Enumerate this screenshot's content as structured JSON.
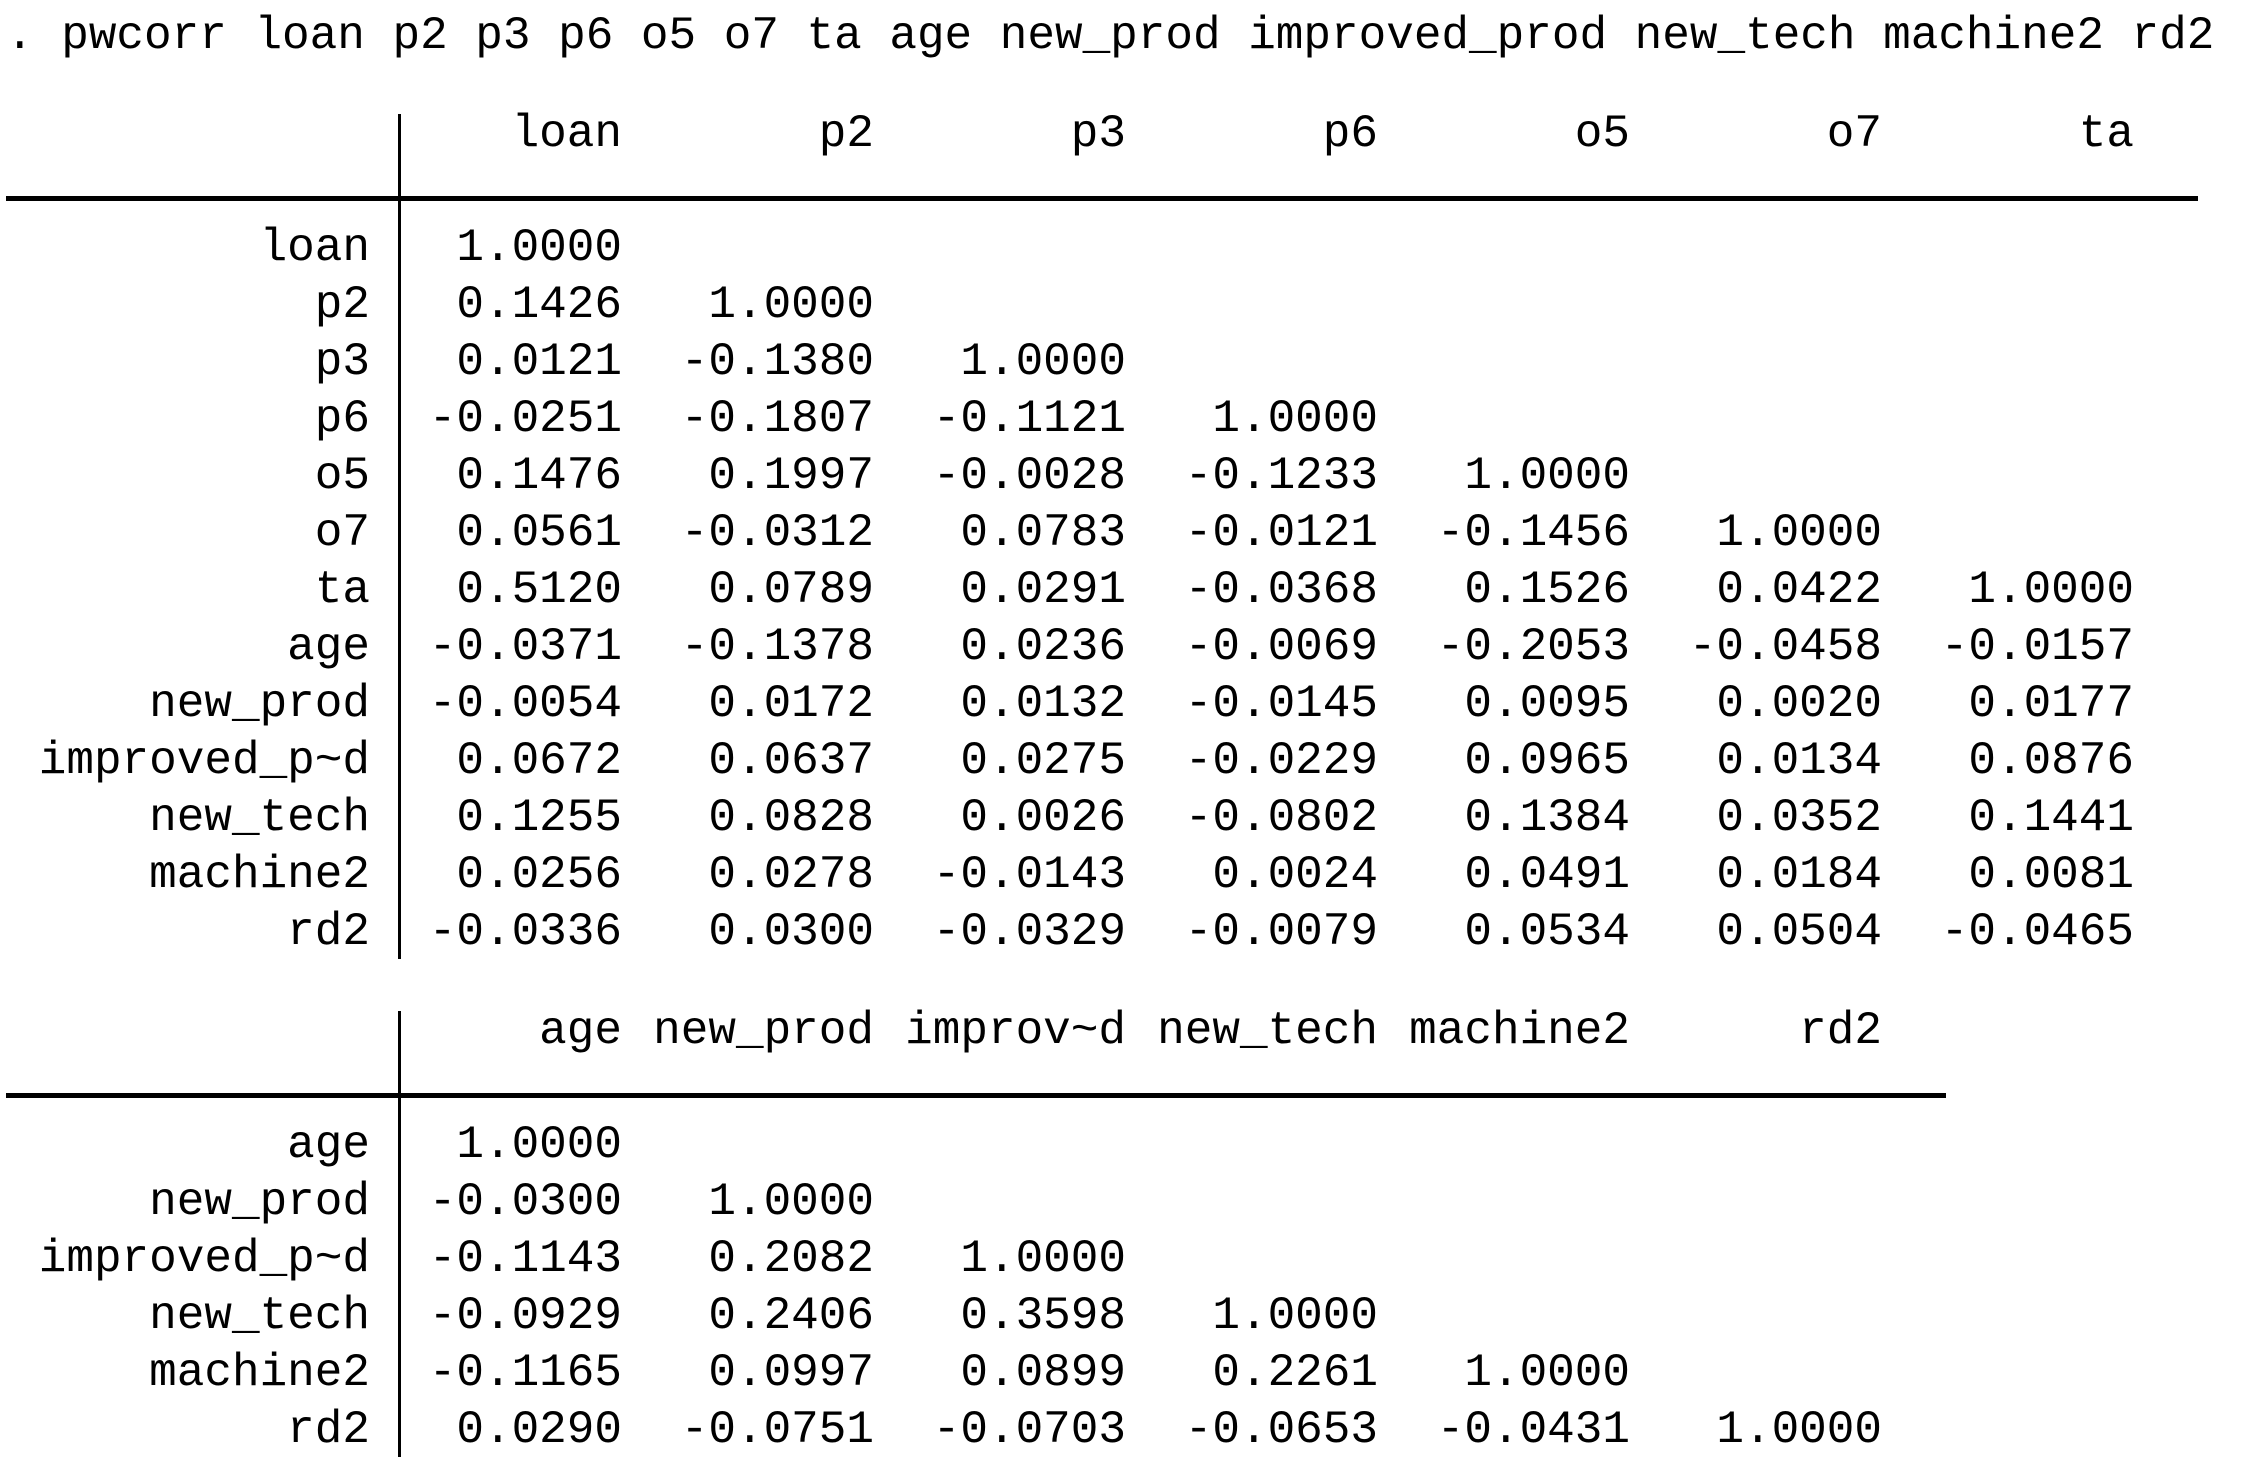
{
  "command_line": ". pwcorr loan p2 p3 p6 o5 o7 ta age new_prod improved_prod new_tech machine2 rd2",
  "colors": {
    "background": "#ffffff",
    "text": "#000000",
    "rule": "#000000"
  },
  "table1": {
    "headers": [
      "loan",
      "p2",
      "p3",
      "p6",
      "o5",
      "o7",
      "ta"
    ],
    "rows": [
      {
        "label": "loan",
        "values": [
          "1.0000"
        ]
      },
      {
        "label": "p2",
        "values": [
          "0.1426",
          "1.0000"
        ]
      },
      {
        "label": "p3",
        "values": [
          "0.0121",
          "-0.1380",
          "1.0000"
        ]
      },
      {
        "label": "p6",
        "values": [
          "-0.0251",
          "-0.1807",
          "-0.1121",
          "1.0000"
        ]
      },
      {
        "label": "o5",
        "values": [
          "0.1476",
          "0.1997",
          "-0.0028",
          "-0.1233",
          "1.0000"
        ]
      },
      {
        "label": "o7",
        "values": [
          "0.0561",
          "-0.0312",
          "0.0783",
          "-0.0121",
          "-0.1456",
          "1.0000"
        ]
      },
      {
        "label": "ta",
        "values": [
          "0.5120",
          "0.0789",
          "0.0291",
          "-0.0368",
          "0.1526",
          "0.0422",
          "1.0000"
        ]
      },
      {
        "label": "age",
        "values": [
          "-0.0371",
          "-0.1378",
          "0.0236",
          "-0.0069",
          "-0.2053",
          "-0.0458",
          "-0.0157"
        ]
      },
      {
        "label": "new_prod",
        "values": [
          "-0.0054",
          "0.0172",
          "0.0132",
          "-0.0145",
          "0.0095",
          "0.0020",
          "0.0177"
        ]
      },
      {
        "label": "improved_p~d",
        "values": [
          "0.0672",
          "0.0637",
          "0.0275",
          "-0.0229",
          "0.0965",
          "0.0134",
          "0.0876"
        ]
      },
      {
        "label": "new_tech",
        "values": [
          "0.1255",
          "0.0828",
          "0.0026",
          "-0.0802",
          "0.1384",
          "0.0352",
          "0.1441"
        ]
      },
      {
        "label": "machine2",
        "values": [
          "0.0256",
          "0.0278",
          "-0.0143",
          "0.0024",
          "0.0491",
          "0.0184",
          "0.0081"
        ]
      },
      {
        "label": "rd2",
        "values": [
          "-0.0336",
          "0.0300",
          "-0.0329",
          "-0.0079",
          "0.0534",
          "0.0504",
          "-0.0465"
        ]
      }
    ]
  },
  "table2": {
    "headers": [
      "age",
      "new_prod",
      "improv~d",
      "new_tech",
      "machine2",
      "rd2"
    ],
    "rows": [
      {
        "label": "age",
        "values": [
          "1.0000"
        ]
      },
      {
        "label": "new_prod",
        "values": [
          "-0.0300",
          "1.0000"
        ]
      },
      {
        "label": "improved_p~d",
        "values": [
          "-0.1143",
          "0.2082",
          "1.0000"
        ]
      },
      {
        "label": "new_tech",
        "values": [
          "-0.0929",
          "0.2406",
          "0.3598",
          "1.0000"
        ]
      },
      {
        "label": "machine2",
        "values": [
          "-0.1165",
          "0.0997",
          "0.0899",
          "0.2261",
          "1.0000"
        ]
      },
      {
        "label": "rd2",
        "values": [
          "0.0290",
          "-0.0751",
          "-0.0703",
          "-0.0653",
          "-0.0431",
          "1.0000"
        ]
      }
    ]
  }
}
